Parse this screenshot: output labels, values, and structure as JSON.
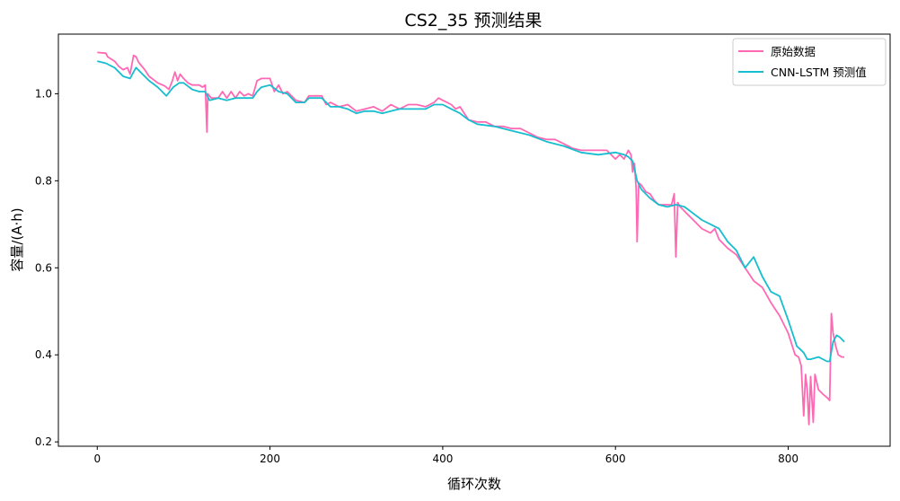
{
  "chart_data": {
    "type": "line",
    "title": "CS2_35 预测结果",
    "xlabel": "循环次数",
    "ylabel": "容量/(A·h)",
    "xlim": [
      -45,
      918
    ],
    "ylim": [
      0.19,
      1.137
    ],
    "x_ticks": [
      0,
      200,
      400,
      600,
      800
    ],
    "y_ticks": [
      0.2,
      0.4,
      0.6,
      0.8,
      1.0
    ],
    "y_tick_labels": [
      "0.2",
      "0.4",
      "0.6",
      "0.8",
      "1.0"
    ],
    "grid": false,
    "legend_position": "top-right",
    "series": [
      {
        "name": "原始数据",
        "color": "#ff69b4",
        "points": [
          [
            0,
            1.095
          ],
          [
            10,
            1.093
          ],
          [
            12,
            1.085
          ],
          [
            20,
            1.075
          ],
          [
            25,
            1.063
          ],
          [
            30,
            1.055
          ],
          [
            35,
            1.06
          ],
          [
            38,
            1.045
          ],
          [
            42,
            1.088
          ],
          [
            45,
            1.085
          ],
          [
            48,
            1.072
          ],
          [
            55,
            1.055
          ],
          [
            60,
            1.04
          ],
          [
            70,
            1.025
          ],
          [
            78,
            1.018
          ],
          [
            83,
            1.01
          ],
          [
            87,
            1.03
          ],
          [
            90,
            1.05
          ],
          [
            93,
            1.03
          ],
          [
            96,
            1.045
          ],
          [
            100,
            1.035
          ],
          [
            105,
            1.025
          ],
          [
            110,
            1.02
          ],
          [
            118,
            1.02
          ],
          [
            122,
            1.015
          ],
          [
            125,
            1.02
          ],
          [
            127,
            0.912
          ],
          [
            128,
            1.0
          ],
          [
            132,
            0.99
          ],
          [
            140,
            0.99
          ],
          [
            145,
            1.005
          ],
          [
            150,
            0.99
          ],
          [
            155,
            1.005
          ],
          [
            160,
            0.99
          ],
          [
            165,
            1.005
          ],
          [
            170,
            0.995
          ],
          [
            175,
            1.0
          ],
          [
            180,
            0.995
          ],
          [
            185,
            1.03
          ],
          [
            190,
            1.035
          ],
          [
            200,
            1.035
          ],
          [
            205,
            1.005
          ],
          [
            210,
            1.02
          ],
          [
            215,
            1.0
          ],
          [
            220,
            1.005
          ],
          [
            230,
            0.985
          ],
          [
            240,
            0.98
          ],
          [
            245,
            0.995
          ],
          [
            250,
            0.995
          ],
          [
            260,
            0.995
          ],
          [
            265,
            0.975
          ],
          [
            270,
            0.98
          ],
          [
            280,
            0.97
          ],
          [
            290,
            0.975
          ],
          [
            300,
            0.96
          ],
          [
            310,
            0.965
          ],
          [
            320,
            0.97
          ],
          [
            330,
            0.96
          ],
          [
            340,
            0.975
          ],
          [
            350,
            0.965
          ],
          [
            360,
            0.975
          ],
          [
            370,
            0.975
          ],
          [
            380,
            0.97
          ],
          [
            390,
            0.98
          ],
          [
            395,
            0.99
          ],
          [
            400,
            0.985
          ],
          [
            410,
            0.975
          ],
          [
            415,
            0.965
          ],
          [
            420,
            0.97
          ],
          [
            425,
            0.955
          ],
          [
            430,
            0.94
          ],
          [
            440,
            0.935
          ],
          [
            450,
            0.935
          ],
          [
            460,
            0.925
          ],
          [
            470,
            0.925
          ],
          [
            480,
            0.92
          ],
          [
            490,
            0.92
          ],
          [
            500,
            0.91
          ],
          [
            510,
            0.9
          ],
          [
            520,
            0.895
          ],
          [
            530,
            0.895
          ],
          [
            540,
            0.885
          ],
          [
            550,
            0.875
          ],
          [
            560,
            0.87
          ],
          [
            570,
            0.87
          ],
          [
            580,
            0.87
          ],
          [
            590,
            0.87
          ],
          [
            595,
            0.86
          ],
          [
            600,
            0.85
          ],
          [
            605,
            0.86
          ],
          [
            610,
            0.85
          ],
          [
            615,
            0.87
          ],
          [
            618,
            0.86
          ],
          [
            620,
            0.82
          ],
          [
            622,
            0.84
          ],
          [
            624,
            0.78
          ],
          [
            625,
            0.66
          ],
          [
            627,
            0.795
          ],
          [
            630,
            0.79
          ],
          [
            635,
            0.775
          ],
          [
            640,
            0.77
          ],
          [
            645,
            0.755
          ],
          [
            650,
            0.745
          ],
          [
            655,
            0.745
          ],
          [
            660,
            0.745
          ],
          [
            665,
            0.745
          ],
          [
            668,
            0.77
          ],
          [
            670,
            0.625
          ],
          [
            672,
            0.75
          ],
          [
            675,
            0.74
          ],
          [
            680,
            0.73
          ],
          [
            690,
            0.71
          ],
          [
            700,
            0.69
          ],
          [
            710,
            0.68
          ],
          [
            715,
            0.69
          ],
          [
            720,
            0.665
          ],
          [
            730,
            0.645
          ],
          [
            740,
            0.63
          ],
          [
            750,
            0.6
          ],
          [
            760,
            0.57
          ],
          [
            770,
            0.555
          ],
          [
            780,
            0.52
          ],
          [
            790,
            0.49
          ],
          [
            800,
            0.45
          ],
          [
            808,
            0.4
          ],
          [
            812,
            0.395
          ],
          [
            815,
            0.375
          ],
          [
            818,
            0.26
          ],
          [
            820,
            0.355
          ],
          [
            822,
            0.32
          ],
          [
            824,
            0.24
          ],
          [
            826,
            0.35
          ],
          [
            829,
            0.245
          ],
          [
            831,
            0.355
          ],
          [
            835,
            0.32
          ],
          [
            840,
            0.31
          ],
          [
            846,
            0.3
          ],
          [
            848,
            0.295
          ],
          [
            850,
            0.495
          ],
          [
            852,
            0.45
          ],
          [
            855,
            0.42
          ],
          [
            858,
            0.4
          ],
          [
            862,
            0.395
          ],
          [
            865,
            0.395
          ]
        ]
      },
      {
        "name": "CNN-LSTM 预测值",
        "color": "#17becf",
        "points": [
          [
            0,
            1.075
          ],
          [
            10,
            1.07
          ],
          [
            20,
            1.06
          ],
          [
            30,
            1.04
          ],
          [
            38,
            1.035
          ],
          [
            42,
            1.05
          ],
          [
            45,
            1.06
          ],
          [
            50,
            1.05
          ],
          [
            60,
            1.03
          ],
          [
            70,
            1.015
          ],
          [
            80,
            0.995
          ],
          [
            88,
            1.015
          ],
          [
            95,
            1.025
          ],
          [
            100,
            1.025
          ],
          [
            110,
            1.01
          ],
          [
            118,
            1.005
          ],
          [
            125,
            1.005
          ],
          [
            130,
            0.985
          ],
          [
            140,
            0.99
          ],
          [
            150,
            0.985
          ],
          [
            160,
            0.99
          ],
          [
            170,
            0.99
          ],
          [
            180,
            0.99
          ],
          [
            185,
            1.005
          ],
          [
            190,
            1.015
          ],
          [
            200,
            1.02
          ],
          [
            210,
            1.005
          ],
          [
            220,
            1.0
          ],
          [
            230,
            0.98
          ],
          [
            240,
            0.98
          ],
          [
            245,
            0.99
          ],
          [
            260,
            0.99
          ],
          [
            270,
            0.97
          ],
          [
            280,
            0.97
          ],
          [
            290,
            0.965
          ],
          [
            300,
            0.955
          ],
          [
            310,
            0.96
          ],
          [
            320,
            0.96
          ],
          [
            330,
            0.955
          ],
          [
            340,
            0.96
          ],
          [
            350,
            0.965
          ],
          [
            360,
            0.965
          ],
          [
            370,
            0.965
          ],
          [
            380,
            0.965
          ],
          [
            390,
            0.975
          ],
          [
            400,
            0.975
          ],
          [
            410,
            0.965
          ],
          [
            420,
            0.955
          ],
          [
            430,
            0.94
          ],
          [
            440,
            0.93
          ],
          [
            460,
            0.925
          ],
          [
            480,
            0.915
          ],
          [
            500,
            0.905
          ],
          [
            520,
            0.89
          ],
          [
            540,
            0.88
          ],
          [
            560,
            0.865
          ],
          [
            580,
            0.86
          ],
          [
            600,
            0.865
          ],
          [
            610,
            0.86
          ],
          [
            615,
            0.855
          ],
          [
            620,
            0.845
          ],
          [
            625,
            0.8
          ],
          [
            630,
            0.78
          ],
          [
            640,
            0.76
          ],
          [
            650,
            0.745
          ],
          [
            660,
            0.74
          ],
          [
            670,
            0.745
          ],
          [
            680,
            0.74
          ],
          [
            690,
            0.725
          ],
          [
            700,
            0.71
          ],
          [
            710,
            0.7
          ],
          [
            720,
            0.69
          ],
          [
            730,
            0.66
          ],
          [
            740,
            0.64
          ],
          [
            750,
            0.6
          ],
          [
            760,
            0.625
          ],
          [
            770,
            0.58
          ],
          [
            780,
            0.545
          ],
          [
            790,
            0.535
          ],
          [
            800,
            0.48
          ],
          [
            810,
            0.42
          ],
          [
            818,
            0.405
          ],
          [
            822,
            0.39
          ],
          [
            826,
            0.39
          ],
          [
            835,
            0.395
          ],
          [
            845,
            0.385
          ],
          [
            848,
            0.385
          ],
          [
            852,
            0.43
          ],
          [
            856,
            0.445
          ],
          [
            860,
            0.44
          ],
          [
            865,
            0.43
          ]
        ]
      }
    ]
  }
}
